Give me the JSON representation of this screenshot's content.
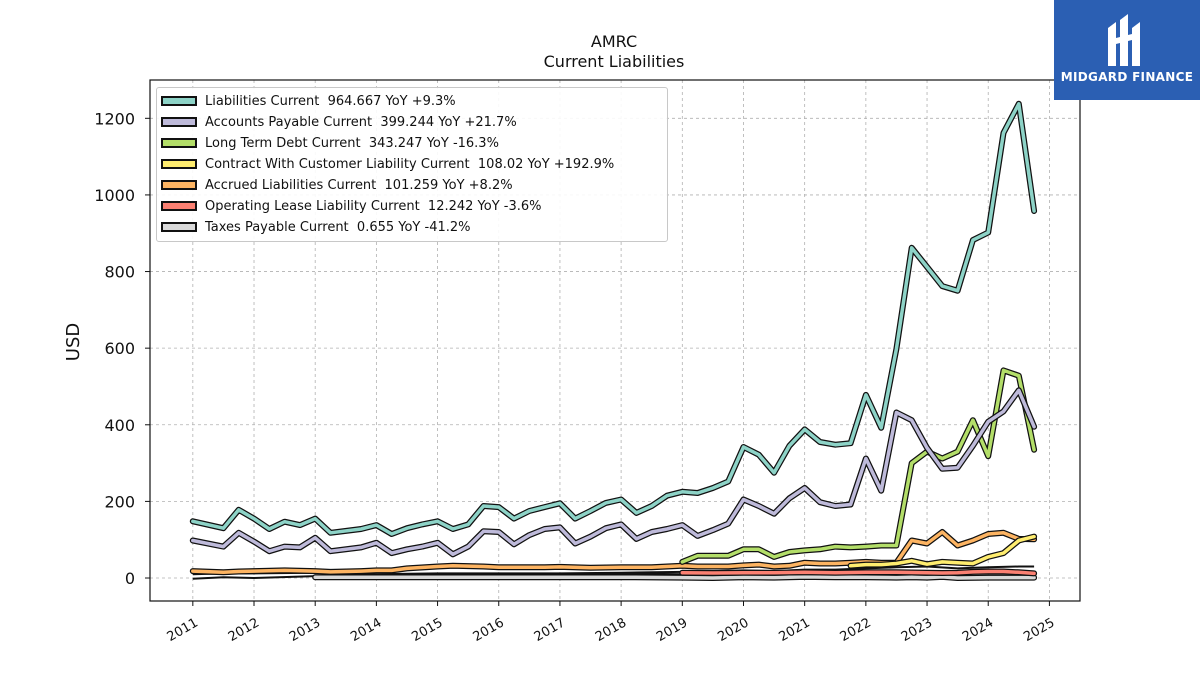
{
  "title_line1": "AMRC",
  "title_line2": "Current  Liabilities",
  "logo_text": "MIDGARD FINANCE",
  "chart_data": {
    "type": "line",
    "title": "AMRC Current  Liabilities",
    "ylabel": "USD",
    "xlabel": "",
    "ylim": [
      -60,
      1300
    ],
    "xlim": [
      2010.3,
      2025.5
    ],
    "y_ticks": [
      0,
      200,
      400,
      600,
      800,
      1000,
      1200
    ],
    "x_ticks": [
      "2011",
      "2012",
      "2013",
      "2014",
      "2015",
      "2016",
      "2017",
      "2018",
      "2019",
      "2020",
      "2021",
      "2022",
      "2023",
      "2024",
      "2025"
    ],
    "grid": true,
    "legend_position": "top-left",
    "series": [
      {
        "name": "Liabilities Current",
        "legend_label": "Liabilities Current  964.667 YoY +9.3%",
        "color": "#8dd3c7",
        "points": [
          [
            2011,
            148
          ],
          [
            2011.5,
            130
          ],
          [
            2011.75,
            178
          ],
          [
            2012,
            155
          ],
          [
            2012.25,
            128
          ],
          [
            2012.5,
            147
          ],
          [
            2012.75,
            138
          ],
          [
            2013,
            155
          ],
          [
            2013.25,
            118
          ],
          [
            2013.75,
            128
          ],
          [
            2014,
            138
          ],
          [
            2014.25,
            115
          ],
          [
            2014.5,
            130
          ],
          [
            2014.75,
            140
          ],
          [
            2015,
            148
          ],
          [
            2015.25,
            128
          ],
          [
            2015.5,
            140
          ],
          [
            2015.75,
            188
          ],
          [
            2016,
            185
          ],
          [
            2016.25,
            155
          ],
          [
            2016.5,
            175
          ],
          [
            2016.75,
            185
          ],
          [
            2017,
            195
          ],
          [
            2017.25,
            155
          ],
          [
            2017.5,
            175
          ],
          [
            2017.75,
            196
          ],
          [
            2018,
            205
          ],
          [
            2018.25,
            170
          ],
          [
            2018.5,
            188
          ],
          [
            2018.75,
            215
          ],
          [
            2019,
            225
          ],
          [
            2019.25,
            222
          ],
          [
            2019.5,
            235
          ],
          [
            2019.75,
            252
          ],
          [
            2020,
            342
          ],
          [
            2020.25,
            322
          ],
          [
            2020.5,
            275
          ],
          [
            2020.75,
            345
          ],
          [
            2021,
            388
          ],
          [
            2021.25,
            355
          ],
          [
            2021.5,
            348
          ],
          [
            2021.75,
            352
          ],
          [
            2022,
            478
          ],
          [
            2022.25,
            392
          ],
          [
            2022.5,
            598
          ],
          [
            2022.75,
            862
          ],
          [
            2023,
            812
          ],
          [
            2023.25,
            762
          ],
          [
            2023.5,
            750
          ],
          [
            2023.75,
            882
          ],
          [
            2024,
            902
          ],
          [
            2024.25,
            1162
          ],
          [
            2024.5,
            1238
          ],
          [
            2024.75,
            958
          ]
        ]
      },
      {
        "name": "Accounts Payable Current",
        "legend_label": "Accounts Payable Current  399.244 YoY +21.7%",
        "color": "#bebada",
        "points": [
          [
            2011,
            98
          ],
          [
            2011.5,
            82
          ],
          [
            2011.75,
            118
          ],
          [
            2012,
            95
          ],
          [
            2012.25,
            70
          ],
          [
            2012.5,
            82
          ],
          [
            2012.75,
            80
          ],
          [
            2013,
            105
          ],
          [
            2013.25,
            70
          ],
          [
            2013.75,
            80
          ],
          [
            2014,
            92
          ],
          [
            2014.25,
            65
          ],
          [
            2014.5,
            75
          ],
          [
            2014.75,
            82
          ],
          [
            2015,
            92
          ],
          [
            2015.25,
            62
          ],
          [
            2015.5,
            82
          ],
          [
            2015.75,
            122
          ],
          [
            2016,
            120
          ],
          [
            2016.25,
            88
          ],
          [
            2016.5,
            112
          ],
          [
            2016.75,
            128
          ],
          [
            2017,
            132
          ],
          [
            2017.25,
            90
          ],
          [
            2017.5,
            108
          ],
          [
            2017.75,
            130
          ],
          [
            2018,
            140
          ],
          [
            2018.25,
            102
          ],
          [
            2018.5,
            120
          ],
          [
            2018.75,
            128
          ],
          [
            2019,
            138
          ],
          [
            2019.25,
            110
          ],
          [
            2019.5,
            125
          ],
          [
            2019.75,
            142
          ],
          [
            2020,
            205
          ],
          [
            2020.25,
            188
          ],
          [
            2020.5,
            168
          ],
          [
            2020.75,
            208
          ],
          [
            2021,
            235
          ],
          [
            2021.25,
            198
          ],
          [
            2021.5,
            188
          ],
          [
            2021.75,
            192
          ],
          [
            2022,
            312
          ],
          [
            2022.25,
            228
          ],
          [
            2022.5,
            432
          ],
          [
            2022.75,
            412
          ],
          [
            2023,
            340
          ],
          [
            2023.25,
            285
          ],
          [
            2023.5,
            288
          ],
          [
            2023.75,
            345
          ],
          [
            2024,
            408
          ],
          [
            2024.25,
            435
          ],
          [
            2024.5,
            490
          ],
          [
            2024.75,
            395
          ]
        ]
      },
      {
        "name": "Long Term Debt Current",
        "legend_label": "Long Term Debt Current  343.247 YoY -16.3%",
        "color": "#b3de69",
        "points": [
          [
            2019,
            42
          ],
          [
            2019.25,
            58
          ],
          [
            2019.5,
            58
          ],
          [
            2019.75,
            58
          ],
          [
            2020,
            75
          ],
          [
            2020.25,
            75
          ],
          [
            2020.5,
            55
          ],
          [
            2020.75,
            68
          ],
          [
            2021,
            72
          ],
          [
            2021.25,
            75
          ],
          [
            2021.5,
            82
          ],
          [
            2021.75,
            80
          ],
          [
            2022,
            82
          ],
          [
            2022.25,
            85
          ],
          [
            2022.5,
            85
          ],
          [
            2022.75,
            300
          ],
          [
            2023,
            330
          ],
          [
            2023.25,
            312
          ],
          [
            2023.5,
            330
          ],
          [
            2023.75,
            412
          ],
          [
            2024,
            318
          ],
          [
            2024.25,
            542
          ],
          [
            2024.5,
            528
          ],
          [
            2024.75,
            335
          ]
        ]
      },
      {
        "name": "Contract With Customer Liability Current",
        "legend_label": "Contract With Customer Liability Current  108.02 YoY +192.9%",
        "color": "#ffed6f",
        "points": [
          [
            2021.75,
            32
          ],
          [
            2022,
            35
          ],
          [
            2022.25,
            35
          ],
          [
            2022.5,
            38
          ],
          [
            2022.75,
            45
          ],
          [
            2023,
            36
          ],
          [
            2023.25,
            42
          ],
          [
            2023.5,
            40
          ],
          [
            2023.75,
            38
          ],
          [
            2024,
            55
          ],
          [
            2024.25,
            65
          ],
          [
            2024.5,
            98
          ],
          [
            2024.75,
            108
          ]
        ]
      },
      {
        "name": "Accrued Liabilities Current",
        "legend_label": "Accrued Liabilities Current  101.259 YoY +8.2%",
        "color": "#fdb462",
        "points": [
          [
            2011,
            18
          ],
          [
            2011.5,
            15
          ],
          [
            2011.75,
            17
          ],
          [
            2012,
            18
          ],
          [
            2012.5,
            20
          ],
          [
            2013,
            18
          ],
          [
            2013.25,
            16
          ],
          [
            2013.75,
            18
          ],
          [
            2014,
            20
          ],
          [
            2014.25,
            20
          ],
          [
            2014.5,
            25
          ],
          [
            2015,
            30
          ],
          [
            2015.25,
            32
          ],
          [
            2015.75,
            30
          ],
          [
            2016,
            28
          ],
          [
            2016.25,
            28
          ],
          [
            2016.75,
            28
          ],
          [
            2017,
            29
          ],
          [
            2017.5,
            27
          ],
          [
            2018,
            28
          ],
          [
            2018.5,
            28
          ],
          [
            2019,
            32
          ],
          [
            2019.25,
            30
          ],
          [
            2019.5,
            30
          ],
          [
            2019.75,
            30
          ],
          [
            2020,
            33
          ],
          [
            2020.25,
            35
          ],
          [
            2020.5,
            30
          ],
          [
            2020.75,
            32
          ],
          [
            2021,
            40
          ],
          [
            2021.25,
            38
          ],
          [
            2021.5,
            38
          ],
          [
            2021.75,
            40
          ],
          [
            2022,
            42
          ],
          [
            2022.25,
            40
          ],
          [
            2022.5,
            40
          ],
          [
            2022.75,
            98
          ],
          [
            2023,
            90
          ],
          [
            2023.25,
            120
          ],
          [
            2023.5,
            85
          ],
          [
            2023.75,
            98
          ],
          [
            2024,
            115
          ],
          [
            2024.25,
            118
          ],
          [
            2024.5,
            102
          ],
          [
            2024.75,
            101
          ]
        ]
      },
      {
        "name": "Operating Lease Liability Current",
        "legend_label": "Operating Lease Liability Current  12.242 YoY -3.6%",
        "color": "#fb8072",
        "points": [
          [
            2019,
            14
          ],
          [
            2019.5,
            13
          ],
          [
            2020,
            14
          ],
          [
            2020.5,
            14
          ],
          [
            2021,
            15
          ],
          [
            2021.5,
            14
          ],
          [
            2022,
            15
          ],
          [
            2022.5,
            15
          ],
          [
            2023,
            14
          ],
          [
            2023.25,
            13
          ],
          [
            2023.5,
            14
          ],
          [
            2023.75,
            16
          ],
          [
            2024,
            17
          ],
          [
            2024.25,
            17
          ],
          [
            2024.5,
            15
          ],
          [
            2024.75,
            12
          ]
        ]
      },
      {
        "name": "Taxes Payable Current",
        "legend_label": "Taxes Payable Current  0.655 YoY -41.2%",
        "color": "#d9d9d9",
        "points": [
          [
            2013,
            2
          ],
          [
            2014,
            2
          ],
          [
            2015,
            2
          ],
          [
            2016,
            2
          ],
          [
            2017,
            2
          ],
          [
            2018,
            2
          ],
          [
            2019,
            1
          ],
          [
            2019.5,
            0
          ],
          [
            2020,
            2
          ],
          [
            2020.5,
            1
          ],
          [
            2021,
            3
          ],
          [
            2021.5,
            2
          ],
          [
            2022,
            2
          ],
          [
            2022.5,
            1
          ],
          [
            2022.75,
            2
          ],
          [
            2023,
            1
          ],
          [
            2023.25,
            3
          ],
          [
            2023.5,
            0
          ],
          [
            2024,
            1
          ],
          [
            2024.5,
            1
          ],
          [
            2024.75,
            1
          ]
        ]
      }
    ],
    "background_series": [
      {
        "color": "#111111",
        "points": [
          [
            2011,
            10
          ],
          [
            2011.5,
            12
          ],
          [
            2012,
            12
          ],
          [
            2013,
            14
          ],
          [
            2014,
            10
          ],
          [
            2015,
            12
          ],
          [
            2016,
            12
          ],
          [
            2017,
            12
          ],
          [
            2018,
            14
          ],
          [
            2019,
            16
          ],
          [
            2019.5,
            18
          ],
          [
            2020,
            20
          ],
          [
            2020.5,
            18
          ],
          [
            2021,
            22
          ],
          [
            2021.5,
            22
          ],
          [
            2022,
            25
          ],
          [
            2022.5,
            28
          ],
          [
            2023,
            30
          ],
          [
            2023.5,
            25
          ],
          [
            2024,
            28
          ],
          [
            2024.5,
            30
          ],
          [
            2024.75,
            30
          ]
        ]
      },
      {
        "color": "#111111",
        "points": [
          [
            2011,
            -2
          ],
          [
            2011.5,
            2
          ],
          [
            2012,
            0
          ],
          [
            2013,
            5
          ],
          [
            2014,
            8
          ],
          [
            2015,
            8
          ],
          [
            2016,
            10
          ],
          [
            2017,
            10
          ],
          [
            2018,
            12
          ],
          [
            2019,
            10
          ],
          [
            2020,
            12
          ],
          [
            2021,
            15
          ],
          [
            2022,
            12
          ],
          [
            2023,
            15
          ],
          [
            2024,
            12
          ],
          [
            2024.75,
            12
          ]
        ]
      }
    ]
  }
}
